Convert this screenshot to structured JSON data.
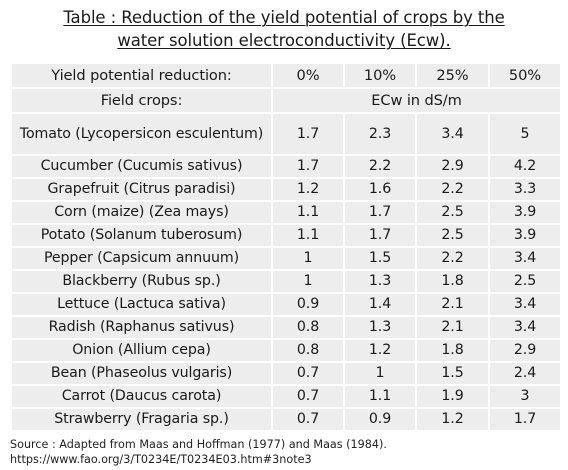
{
  "title": {
    "line1": "Table : Reduction of the yield potential of crops by the",
    "line2": "water solution electroconductivity (Ecw)."
  },
  "table": {
    "header": [
      "Yield potential reduction:",
      "0%",
      "10%",
      "25%",
      "50%"
    ],
    "subheader": {
      "label": "Field crops:",
      "unit": "ECw in dS/m"
    },
    "rows": [
      {
        "crop": "Tomato (Lycopersicon esculentum)",
        "values": [
          "1.7",
          "2.3",
          "3.4",
          "5"
        ]
      },
      {
        "crop": "Cucumber (Cucumis sativus)",
        "values": [
          "1.7",
          "2.2",
          "2.9",
          "4.2"
        ]
      },
      {
        "crop": "Grapefruit (Citrus paradisi)",
        "values": [
          "1.2",
          "1.6",
          "2.2",
          "3.3"
        ]
      },
      {
        "crop": "Corn (maize) (Zea mays)",
        "values": [
          "1.1",
          "1.7",
          "2.5",
          "3.9"
        ]
      },
      {
        "crop": "Potato (Solanum tuberosum)",
        "values": [
          "1.1",
          "1.7",
          "2.5",
          "3.9"
        ]
      },
      {
        "crop": "Pepper (Capsicum annuum)",
        "values": [
          "1",
          "1.5",
          "2.2",
          "3.4"
        ]
      },
      {
        "crop": "Blackberry (Rubus sp.)",
        "values": [
          "1",
          "1.3",
          "1.8",
          "2.5"
        ]
      },
      {
        "crop": "Lettuce (Lactuca sativa)",
        "values": [
          "0.9",
          "1.4",
          "2.1",
          "3.4"
        ]
      },
      {
        "crop": "Radish (Raphanus sativus)",
        "values": [
          "0.8",
          "1.3",
          "2.1",
          "3.4"
        ]
      },
      {
        "crop": "Onion (Allium cepa)",
        "values": [
          "0.8",
          "1.2",
          "1.8",
          "2.9"
        ]
      },
      {
        "crop": "Bean (Phaseolus vulgaris)",
        "values": [
          "0.7",
          "1",
          "1.5",
          "2.4"
        ]
      },
      {
        "crop": "Carrot (Daucus carota)",
        "values": [
          "0.7",
          "1.1",
          "1.9",
          "3"
        ]
      },
      {
        "crop": "Strawberry (Fragaria sp.)",
        "values": [
          "0.7",
          "0.9",
          "1.2",
          "1.7"
        ]
      }
    ]
  },
  "source": {
    "line1": "Source :  Adapted from Maas and Hoffman (1977) and Maas (1984).",
    "line2": "https://www.fao.org/3/T0234E/T0234E03.htm#3note3"
  }
}
